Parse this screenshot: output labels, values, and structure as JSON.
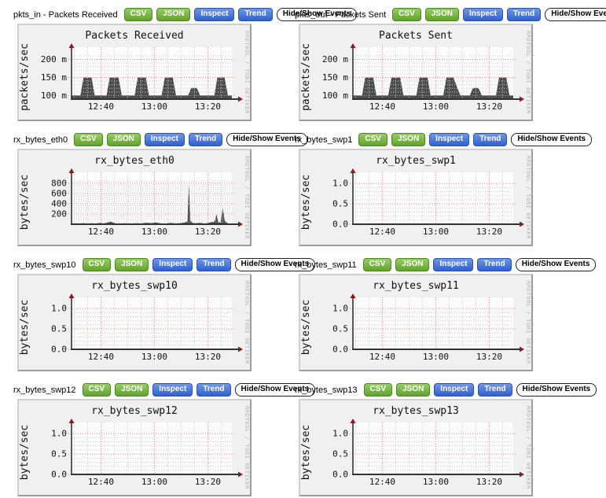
{
  "watermark": "RRDTOOL / TOBI OETIKER",
  "header_buttons": {
    "csv": "CSV",
    "json": "JSON",
    "inspect": "Inspect",
    "trend": "Trend",
    "events": "Hide/Show Events"
  },
  "colors": {
    "button_green": "#61a32e",
    "button_blue": "#3060cf",
    "panel_bg": "#f0f0f0",
    "canvas": "#fcfcfc",
    "series_fill": "#4d4d4d",
    "major_grid": "#e98080",
    "minor_grid": "#c9c9c9",
    "axis": "#333333",
    "arrow": "#8b1a1a",
    "text": "#111111",
    "watermark_text": "#b4b4b4"
  },
  "chart_data": [
    {
      "id": "pkts_in",
      "header_label": "pkts_in - Packets Received",
      "type": "area",
      "title": "Packets Received",
      "ylabel": "packets/sec",
      "ymin": 90,
      "ymax": 212,
      "y_minor_step": 10,
      "yticks": [
        {
          "v": 100,
          "label": "100 m"
        },
        {
          "v": 150,
          "label": "150 m"
        },
        {
          "v": 200,
          "label": "200 m"
        }
      ],
      "xmin": 0,
      "xmax": 60,
      "x_minor_step": 5,
      "x_minor_offset": 1,
      "xticks": [
        {
          "t": 11,
          "label": "12:40"
        },
        {
          "t": 31,
          "label": "13:00"
        },
        {
          "t": 51,
          "label": "13:20"
        }
      ],
      "series": [
        [
          0,
          100
        ],
        [
          3.3,
          100
        ],
        [
          4.5,
          150
        ],
        [
          7.5,
          150
        ],
        [
          8.7,
          100
        ],
        [
          13.1,
          100
        ],
        [
          14.3,
          150
        ],
        [
          17.6,
          150
        ],
        [
          18.8,
          100
        ],
        [
          23.6,
          100
        ],
        [
          24.8,
          150
        ],
        [
          27.8,
          150
        ],
        [
          29,
          100
        ],
        [
          33.7,
          100
        ],
        [
          34.9,
          150
        ],
        [
          37.9,
          150
        ],
        [
          39.1,
          100
        ],
        [
          43.6,
          100
        ],
        [
          44.8,
          121
        ],
        [
          46.9,
          121
        ],
        [
          48.1,
          100
        ],
        [
          53.4,
          100
        ],
        [
          54.6,
          150
        ],
        [
          57.3,
          150
        ],
        [
          58.5,
          100
        ],
        [
          60,
          100
        ]
      ]
    },
    {
      "id": "pkts_out",
      "header_label": "pkts_out - Packets Sent",
      "type": "area",
      "title": "Packets Sent",
      "ylabel": "packets/sec",
      "ymin": 90,
      "ymax": 212,
      "y_minor_step": 10,
      "yticks": [
        {
          "v": 100,
          "label": "100 m"
        },
        {
          "v": 150,
          "label": "150 m"
        },
        {
          "v": 200,
          "label": "200 m"
        }
      ],
      "xmin": 0,
      "xmax": 60,
      "x_minor_step": 5,
      "x_minor_offset": 1,
      "xticks": [
        {
          "t": 11,
          "label": "12:40"
        },
        {
          "t": 31,
          "label": "13:00"
        },
        {
          "t": 51,
          "label": "13:20"
        }
      ],
      "series": [
        [
          0,
          100
        ],
        [
          3.4,
          100
        ],
        [
          4.6,
          150
        ],
        [
          7.6,
          150
        ],
        [
          8.8,
          100
        ],
        [
          13.2,
          100
        ],
        [
          14.4,
          150
        ],
        [
          17.7,
          150
        ],
        [
          18.9,
          100
        ],
        [
          23.7,
          100
        ],
        [
          24.9,
          150
        ],
        [
          27.9,
          150
        ],
        [
          29.1,
          100
        ],
        [
          33.8,
          100
        ],
        [
          35,
          150
        ],
        [
          37.6,
          150
        ],
        [
          40.2,
          100
        ],
        [
          43.7,
          100
        ],
        [
          44.9,
          121
        ],
        [
          47,
          121
        ],
        [
          48.2,
          100
        ],
        [
          53.5,
          100
        ],
        [
          54.7,
          150
        ],
        [
          57.4,
          150
        ],
        [
          58.6,
          100
        ],
        [
          60,
          100
        ]
      ]
    },
    {
      "id": "rx_bytes_eth0",
      "header_label": "rx_bytes_eth0",
      "type": "area",
      "title": "rx_bytes_eth0",
      "ylabel": "bytes/sec",
      "ymin": 0,
      "ymax": 860,
      "y_minor_step": 40,
      "yticks": [
        {
          "v": 200,
          "label": "200"
        },
        {
          "v": 400,
          "label": "400"
        },
        {
          "v": 600,
          "label": "600"
        },
        {
          "v": 800,
          "label": "800"
        }
      ],
      "xmin": 0,
      "xmax": 60,
      "x_minor_step": 5,
      "x_minor_offset": 1,
      "xticks": [
        {
          "t": 11,
          "label": "12:40"
        },
        {
          "t": 31,
          "label": "13:00"
        },
        {
          "t": 51,
          "label": "13:20"
        }
      ],
      "series": [
        [
          0,
          8
        ],
        [
          1.5,
          18
        ],
        [
          3,
          10
        ],
        [
          4.5,
          22
        ],
        [
          6,
          12
        ],
        [
          7.5,
          18
        ],
        [
          9,
          10
        ],
        [
          10.5,
          25
        ],
        [
          12,
          15
        ],
        [
          13.5,
          30
        ],
        [
          14.5,
          55
        ],
        [
          15.5,
          35
        ],
        [
          16.5,
          15
        ],
        [
          18,
          10
        ],
        [
          20,
          18
        ],
        [
          22,
          12
        ],
        [
          24,
          20
        ],
        [
          26,
          15
        ],
        [
          28,
          28
        ],
        [
          30,
          22
        ],
        [
          31.5,
          32
        ],
        [
          33,
          18
        ],
        [
          35,
          12
        ],
        [
          37,
          25
        ],
        [
          39,
          15
        ],
        [
          41,
          22
        ],
        [
          42.5,
          35
        ],
        [
          43.4,
          60
        ],
        [
          43.9,
          780
        ],
        [
          44.5,
          70
        ],
        [
          45.2,
          25
        ],
        [
          46.5,
          18
        ],
        [
          48,
          28
        ],
        [
          49.5,
          15
        ],
        [
          51,
          22
        ],
        [
          52.5,
          45
        ],
        [
          53.6,
          55
        ],
        [
          54.2,
          200
        ],
        [
          54.9,
          40
        ],
        [
          55.8,
          35
        ],
        [
          56.6,
          320
        ],
        [
          57.3,
          70
        ],
        [
          58.2,
          25
        ],
        [
          59,
          12
        ],
        [
          60,
          8
        ]
      ]
    },
    {
      "id": "rx_bytes_swp1",
      "header_label": "rx_bytes_swp1",
      "type": "area",
      "title": "rx_bytes_swp1",
      "ylabel": "bytes/sec",
      "ymin": 0,
      "ymax": 1.08,
      "y_minor_step": 0.1,
      "yticks": [
        {
          "v": 0,
          "label": "0.0"
        },
        {
          "v": 0.5,
          "label": "0.5"
        },
        {
          "v": 1,
          "label": "1.0"
        }
      ],
      "xmin": 0,
      "xmax": 60,
      "x_minor_step": 5,
      "x_minor_offset": 1,
      "xticks": [
        {
          "t": 11,
          "label": "12:40"
        },
        {
          "t": 31,
          "label": "13:00"
        },
        {
          "t": 51,
          "label": "13:20"
        }
      ],
      "series": []
    },
    {
      "id": "rx_bytes_swp10",
      "header_label": "rx_bytes_swp10",
      "type": "area",
      "title": "rx_bytes_swp10",
      "ylabel": "bytes/sec",
      "ymin": 0,
      "ymax": 1.08,
      "y_minor_step": 0.1,
      "yticks": [
        {
          "v": 0,
          "label": "0.0"
        },
        {
          "v": 0.5,
          "label": "0.5"
        },
        {
          "v": 1,
          "label": "1.0"
        }
      ],
      "xmin": 0,
      "xmax": 60,
      "x_minor_step": 5,
      "x_minor_offset": 1,
      "xticks": [
        {
          "t": 11,
          "label": "12:40"
        },
        {
          "t": 31,
          "label": "13:00"
        },
        {
          "t": 51,
          "label": "13:20"
        }
      ],
      "series": []
    },
    {
      "id": "rx_bytes_swp11",
      "header_label": "rx_bytes_swp11",
      "type": "area",
      "title": "rx_bytes_swp11",
      "ylabel": "bytes/sec",
      "ymin": 0,
      "ymax": 1.08,
      "y_minor_step": 0.1,
      "yticks": [
        {
          "v": 0,
          "label": "0.0"
        },
        {
          "v": 0.5,
          "label": "0.5"
        },
        {
          "v": 1,
          "label": "1.0"
        }
      ],
      "xmin": 0,
      "xmax": 60,
      "x_minor_step": 5,
      "x_minor_offset": 1,
      "xticks": [
        {
          "t": 11,
          "label": "12:40"
        },
        {
          "t": 31,
          "label": "13:00"
        },
        {
          "t": 51,
          "label": "13:20"
        }
      ],
      "series": []
    },
    {
      "id": "rx_bytes_swp12",
      "header_label": "rx_bytes_swp12",
      "type": "area",
      "title": "rx_bytes_swp12",
      "ylabel": "bytes/sec",
      "ymin": 0,
      "ymax": 1.08,
      "y_minor_step": 0.1,
      "yticks": [
        {
          "v": 0,
          "label": "0.0"
        },
        {
          "v": 0.5,
          "label": "0.5"
        },
        {
          "v": 1,
          "label": "1.0"
        }
      ],
      "xmin": 0,
      "xmax": 60,
      "x_minor_step": 5,
      "x_minor_offset": 1,
      "xticks": [
        {
          "t": 11,
          "label": "12:40"
        },
        {
          "t": 31,
          "label": "13:00"
        },
        {
          "t": 51,
          "label": "13:20"
        }
      ],
      "series": []
    },
    {
      "id": "rx_bytes_swp13",
      "header_label": "rx_bytes_swp13",
      "type": "area",
      "title": "rx_bytes_swp13",
      "ylabel": "bytes/sec",
      "ymin": 0,
      "ymax": 1.08,
      "y_minor_step": 0.1,
      "yticks": [
        {
          "v": 0,
          "label": "0.0"
        },
        {
          "v": 0.5,
          "label": "0.5"
        },
        {
          "v": 1,
          "label": "1.0"
        }
      ],
      "xmin": 0,
      "xmax": 60,
      "x_minor_step": 5,
      "x_minor_offset": 1,
      "xticks": [
        {
          "t": 11,
          "label": "12:40"
        },
        {
          "t": 31,
          "label": "13:00"
        },
        {
          "t": 51,
          "label": "13:20"
        }
      ],
      "series": []
    }
  ]
}
